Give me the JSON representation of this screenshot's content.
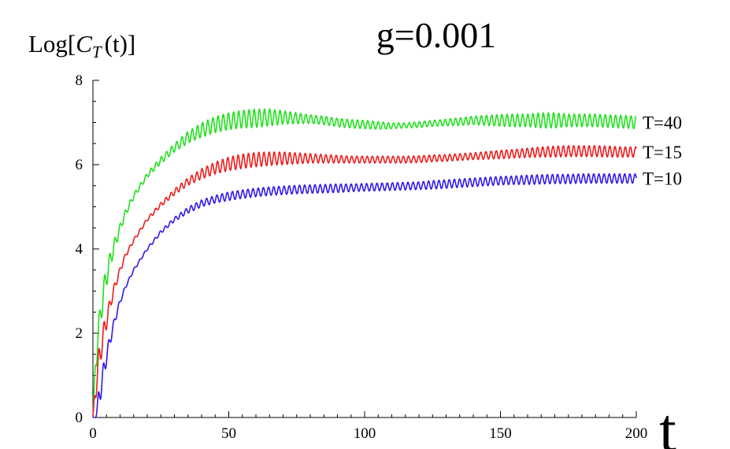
{
  "chart_data": {
    "type": "line",
    "title": "g=0.001",
    "ylabel_prefix": "Log[",
    "ylabel_c": "C",
    "ylabel_sub": "T",
    "ylabel_suffix": "(t)]",
    "xlabel": "t",
    "xlim": [
      0,
      200
    ],
    "ylim": [
      0,
      8
    ],
    "x_ticks": [
      0,
      50,
      100,
      150,
      200
    ],
    "y_ticks": [
      0,
      2,
      4,
      6,
      8
    ],
    "x_tick_labels": [
      "0",
      "50",
      "100",
      "150",
      "200"
    ],
    "y_tick_labels": [
      "0",
      "2",
      "4",
      "6",
      "8"
    ],
    "grid": false,
    "legend": "inline-right",
    "series": [
      {
        "name": "T=40",
        "color": "#22e01e",
        "x": [
          0,
          1,
          2,
          3,
          4,
          5,
          6,
          8,
          10,
          12,
          15,
          20,
          25,
          30,
          35,
          40,
          45,
          50,
          55,
          60,
          65,
          70,
          75,
          80,
          85,
          90,
          95,
          100,
          105,
          110,
          115,
          120,
          125,
          130,
          135,
          140,
          145,
          150,
          155,
          160,
          165,
          170,
          175,
          180,
          185,
          190,
          195,
          200
        ],
        "y": [
          0.0,
          1.3,
          2.0,
          2.55,
          3.0,
          3.35,
          3.65,
          4.1,
          4.5,
          4.85,
          5.25,
          5.75,
          6.1,
          6.4,
          6.65,
          6.82,
          6.95,
          7.03,
          7.08,
          7.1,
          7.12,
          7.12,
          7.1,
          7.08,
          7.05,
          7.0,
          6.97,
          6.95,
          6.93,
          6.92,
          6.93,
          6.95,
          6.98,
          7.0,
          7.02,
          7.05,
          7.05,
          7.05,
          7.05,
          7.05,
          7.05,
          7.05,
          7.05,
          7.05,
          7.05,
          7.03,
          7.02,
          7.0
        ],
        "amp": [
          0,
          0.3,
          0.3,
          0.3,
          0.28,
          0.25,
          0.2,
          0.15,
          0.1,
          0.08,
          0.06,
          0.06,
          0.08,
          0.1,
          0.14,
          0.17,
          0.19,
          0.2,
          0.21,
          0.22,
          0.2,
          0.16,
          0.13,
          0.1,
          0.1,
          0.1,
          0.1,
          0.1,
          0.09,
          0.07,
          0.06,
          0.07,
          0.07,
          0.08,
          0.09,
          0.1,
          0.12,
          0.14,
          0.15,
          0.15,
          0.18,
          0.18,
          0.15,
          0.15,
          0.15,
          0.15,
          0.15,
          0.15
        ]
      },
      {
        "name": "T=15",
        "color": "#ee1c1c",
        "x": [
          0,
          1,
          2,
          3,
          4,
          5,
          6,
          8,
          10,
          12,
          15,
          20,
          25,
          30,
          35,
          40,
          45,
          50,
          55,
          60,
          65,
          70,
          75,
          80,
          85,
          90,
          95,
          100,
          105,
          110,
          115,
          120,
          125,
          130,
          135,
          140,
          145,
          150,
          155,
          160,
          165,
          170,
          175,
          180,
          185,
          190,
          195,
          200
        ],
        "y": [
          0.0,
          0.7,
          1.25,
          1.65,
          2.0,
          2.3,
          2.6,
          3.1,
          3.5,
          3.85,
          4.2,
          4.7,
          5.05,
          5.35,
          5.6,
          5.78,
          5.92,
          6.02,
          6.08,
          6.12,
          6.14,
          6.15,
          6.15,
          6.15,
          6.14,
          6.13,
          6.12,
          6.12,
          6.12,
          6.12,
          6.12,
          6.13,
          6.15,
          6.16,
          6.18,
          6.2,
          6.22,
          6.24,
          6.26,
          6.28,
          6.3,
          6.31,
          6.32,
          6.32,
          6.32,
          6.31,
          6.3,
          6.3
        ],
        "amp": [
          0,
          0.3,
          0.3,
          0.28,
          0.25,
          0.2,
          0.15,
          0.1,
          0.07,
          0.05,
          0.04,
          0.04,
          0.05,
          0.07,
          0.09,
          0.12,
          0.14,
          0.16,
          0.17,
          0.17,
          0.16,
          0.15,
          0.13,
          0.11,
          0.1,
          0.09,
          0.08,
          0.08,
          0.08,
          0.08,
          0.08,
          0.08,
          0.08,
          0.08,
          0.08,
          0.08,
          0.09,
          0.1,
          0.1,
          0.11,
          0.12,
          0.13,
          0.13,
          0.13,
          0.13,
          0.13,
          0.12,
          0.12
        ]
      },
      {
        "name": "T=10",
        "color": "#3018ea",
        "x": [
          0,
          1,
          2,
          3,
          4,
          5,
          6,
          8,
          10,
          12,
          15,
          20,
          25,
          30,
          35,
          40,
          45,
          50,
          55,
          60,
          65,
          70,
          75,
          80,
          85,
          90,
          95,
          100,
          105,
          110,
          115,
          120,
          125,
          130,
          135,
          140,
          145,
          150,
          155,
          160,
          165,
          170,
          175,
          180,
          185,
          190,
          195,
          200
        ],
        "y": [
          0.0,
          0.0,
          0.35,
          0.75,
          1.1,
          1.45,
          1.75,
          2.3,
          2.75,
          3.1,
          3.5,
          4.0,
          4.4,
          4.7,
          4.92,
          5.08,
          5.18,
          5.25,
          5.3,
          5.34,
          5.37,
          5.39,
          5.41,
          5.42,
          5.43,
          5.44,
          5.45,
          5.46,
          5.47,
          5.48,
          5.49,
          5.5,
          5.52,
          5.54,
          5.56,
          5.58,
          5.6,
          5.62,
          5.63,
          5.64,
          5.65,
          5.66,
          5.66,
          5.67,
          5.67,
          5.67,
          5.67,
          5.67
        ],
        "amp": [
          0,
          0.0,
          0.25,
          0.25,
          0.22,
          0.18,
          0.14,
          0.09,
          0.06,
          0.04,
          0.03,
          0.03,
          0.04,
          0.05,
          0.07,
          0.08,
          0.09,
          0.1,
          0.1,
          0.1,
          0.1,
          0.1,
          0.1,
          0.1,
          0.1,
          0.1,
          0.09,
          0.09,
          0.09,
          0.09,
          0.09,
          0.09,
          0.1,
          0.1,
          0.1,
          0.1,
          0.1,
          0.1,
          0.1,
          0.11,
          0.11,
          0.11,
          0.11,
          0.11,
          0.11,
          0.11,
          0.11,
          0.11
        ]
      }
    ]
  }
}
